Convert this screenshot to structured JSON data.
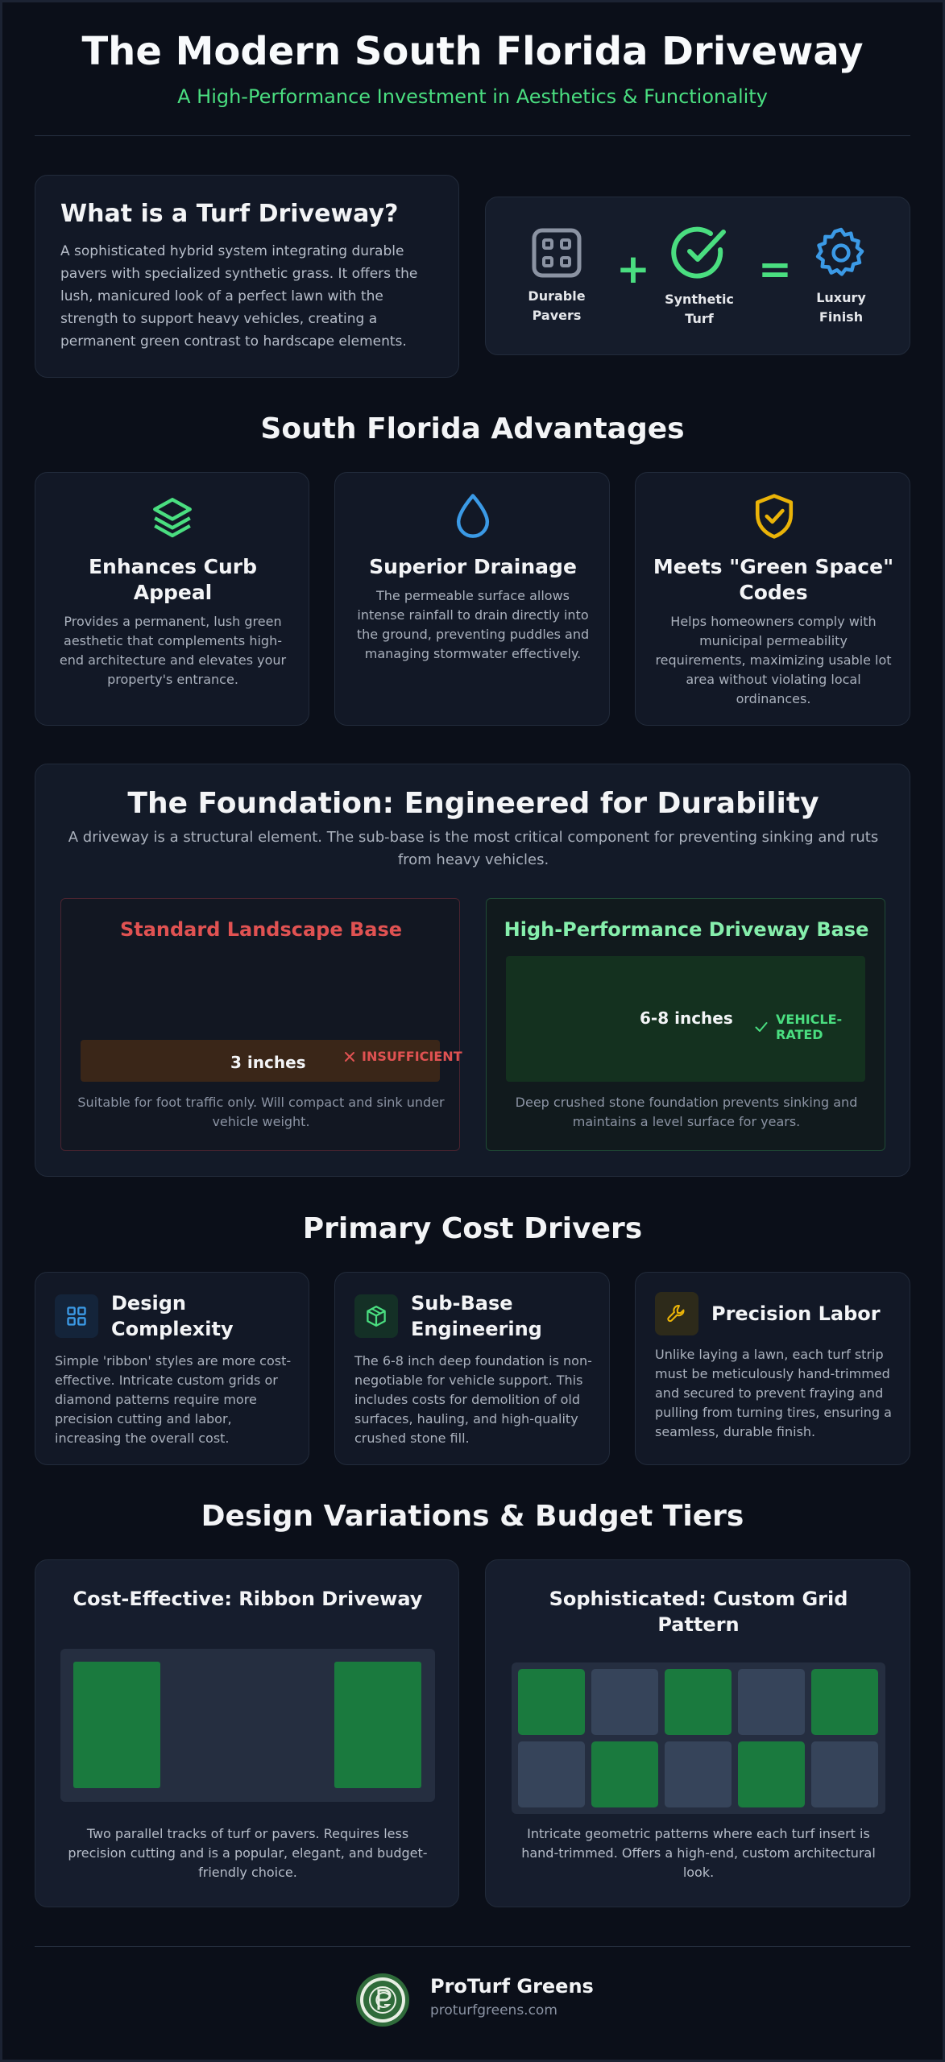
{
  "header": {
    "title": "The Modern South Florida Driveway",
    "subtitle": "A High-Performance Investment in Aesthetics & Functionality"
  },
  "intro": {
    "title": "What is a Turf Driveway?",
    "text": "A sophisticated hybrid system integrating durable pavers with specialized synthetic grass. It offers the lush, manicured look of a perfect lawn with the strength to support heavy vehicles, creating a permanent green contrast to hardscape elements.",
    "formula": [
      {
        "icon": "grid-icon",
        "line1": "Durable",
        "line2": "Pavers"
      },
      {
        "icon": "check-circle-icon",
        "line1": "Synthetic",
        "line2": "Turf"
      },
      {
        "icon": "gear-icon",
        "line1": "Luxury",
        "line2": "Finish"
      }
    ],
    "plus": "+",
    "equals": "="
  },
  "advantages": {
    "title": "South Florida Advantages",
    "items": [
      {
        "icon": "layers-icon",
        "color": "#4ade80",
        "title_l1": "Enhances Curb",
        "title_l2": "Appeal",
        "lines": [
          "Provides a permanent, lush green",
          "aesthetic that complements high-",
          "end architecture and elevates your",
          "property's entrance."
        ]
      },
      {
        "icon": "droplet-icon",
        "color": "#3b9ae6",
        "title_l1": "Superior Drainage",
        "title_l2": "",
        "lines": [
          "The permeable surface allows",
          "intense rainfall to drain directly into",
          "the ground, preventing puddles and",
          "managing stormwater effectively."
        ]
      },
      {
        "icon": "shield-check-icon",
        "color": "#eab308",
        "title_l1": "Meets \"Green Space\"",
        "title_l2": "Codes",
        "lines": [
          "Helps homeowners comply with",
          "municipal permeability",
          "requirements, maximizing usable lot",
          "area without violating local",
          "ordinances."
        ]
      }
    ]
  },
  "foundation": {
    "title": "The Foundation: Engineered for Durability",
    "text_l1": "A driveway is a structural element. The sub-base is the most critical component for preventing sinking and ruts",
    "text_l2": "from heavy vehicles.",
    "standard": {
      "title": "Standard Landscape Base",
      "depth": "3 inches",
      "status": "INSUFFICIENT",
      "note_l1": "Suitable for foot traffic only. Will compact and sink under",
      "note_l2": "vehicle weight."
    },
    "performance": {
      "title": "High-Performance Driveway Base",
      "depth": "6-8 inches",
      "status": "VEHICLE-RATED",
      "note_l1": "Deep crushed stone foundation prevents sinking and",
      "note_l2": "maintains a level surface for years."
    }
  },
  "costs": {
    "title": "Primary Cost Drivers",
    "items": [
      {
        "icon": "grid-icon",
        "title_l1": "Design",
        "title_l2": "Complexity",
        "lines": [
          "Simple 'ribbon' styles are more cost-",
          "effective. Intricate custom grids or",
          "diamond patterns require more",
          "precision cutting and labor,",
          "increasing the overall cost."
        ]
      },
      {
        "icon": "cube-icon",
        "title_l1": "Sub-Base",
        "title_l2": "Engineering",
        "lines": [
          "The 6-8 inch deep foundation is non-",
          "negotiable for vehicle support. This",
          "includes costs for demolition of old",
          "surfaces, hauling, and high-quality",
          "crushed stone fill."
        ]
      },
      {
        "icon": "wrench-icon",
        "title_l1": "Precision Labor",
        "title_l2": "",
        "lines": [
          "Unlike laying a lawn, each turf strip",
          "must be meticulously hand-trimmed",
          "and secured to prevent fraying and",
          "pulling from turning tires, ensuring a",
          "seamless, durable finish."
        ]
      }
    ]
  },
  "designs": {
    "title": "Design Variations & Budget Tiers",
    "ribbon": {
      "title": "Cost-Effective: Ribbon Driveway",
      "lines": [
        "Two parallel tracks of turf or pavers. Requires less",
        "precision cutting and is a popular, elegant, and budget-",
        "friendly choice."
      ]
    },
    "grid": {
      "title_l1": "Sophisticated: Custom Grid",
      "title_l2": "Pattern",
      "lines": [
        "Intricate geometric patterns where each turf insert is",
        "hand-trimmed. Offers a high-end, custom architectural",
        "look."
      ]
    }
  },
  "footer": {
    "brand": "ProTurf Greens",
    "url": "proturfgreens.com"
  },
  "colors": {
    "background": "#0b0f19",
    "accent_green": "#4ade80",
    "turf_green": "#1a7a3e",
    "danger_red": "#e05252",
    "warning_yellow": "#eab308",
    "info_blue": "#3b9ae6"
  }
}
